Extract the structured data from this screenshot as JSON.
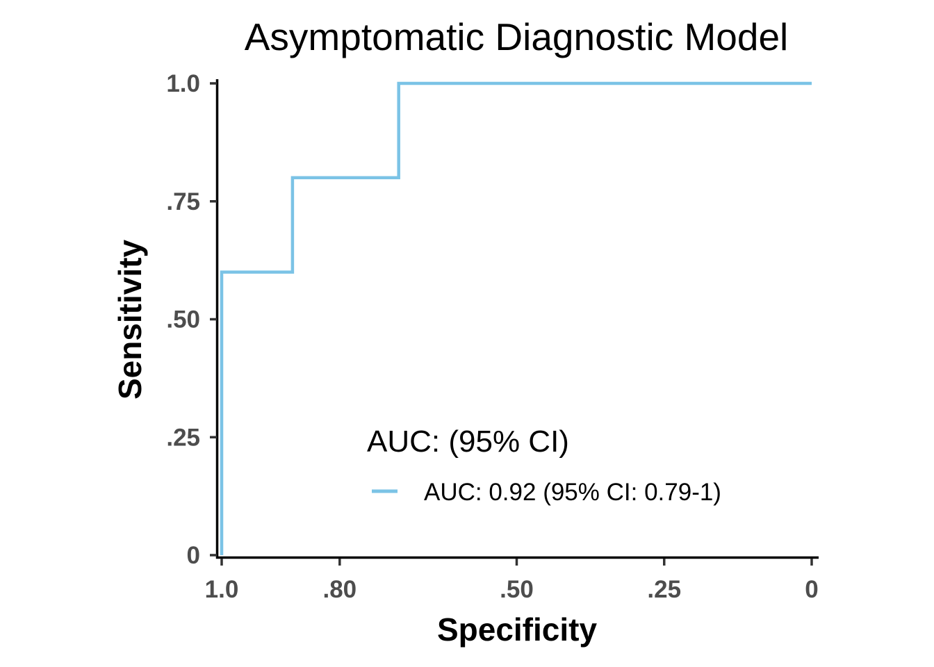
{
  "chart_data": {
    "type": "line",
    "subtype": "roc-step",
    "title": "Asymptomatic Diagnostic Model",
    "xlabel": "Specificity",
    "ylabel": "Sensitivity",
    "x_reversed": true,
    "xlim": [
      1.0,
      0
    ],
    "ylim": [
      0,
      1.0
    ],
    "x_ticks": [
      1.0,
      0.8,
      0.5,
      0.25,
      0
    ],
    "x_tick_labels": [
      "1.0",
      ".80",
      ".50",
      ".25",
      "0"
    ],
    "y_ticks": [
      0,
      0.25,
      0.5,
      0.75,
      1.0
    ],
    "y_tick_labels": [
      "0",
      ".25",
      ".50",
      ".75",
      "1.0"
    ],
    "grid": false,
    "legend": {
      "title": "AUC: (95% CI)",
      "placement": "bottom-right"
    },
    "series": [
      {
        "name": "AUC: 0.92 (95% CI: 0.79-1)",
        "color": "#7bc3e6",
        "points": [
          {
            "specificity": 1.0,
            "sensitivity": 0.0
          },
          {
            "specificity": 1.0,
            "sensitivity": 0.6
          },
          {
            "specificity": 0.88,
            "sensitivity": 0.6
          },
          {
            "specificity": 0.88,
            "sensitivity": 0.8
          },
          {
            "specificity": 0.7,
            "sensitivity": 0.8
          },
          {
            "specificity": 0.7,
            "sensitivity": 1.0
          },
          {
            "specificity": 0.0,
            "sensitivity": 1.0
          }
        ]
      }
    ]
  }
}
